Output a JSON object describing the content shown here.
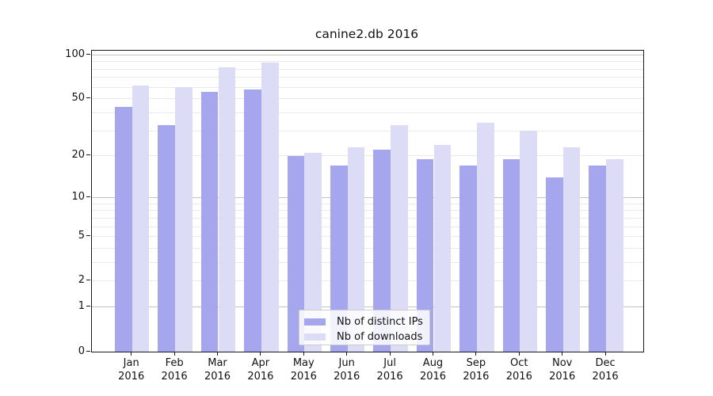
{
  "title": "canine2.db 2016",
  "chart_data": {
    "type": "bar",
    "title": "canine2.db 2016",
    "y_scale": "log1p (symlog-like, 0 shown on axis)",
    "categories": [
      "Jan 2016",
      "Feb 2016",
      "Mar 2016",
      "Apr 2016",
      "May 2016",
      "Jun 2016",
      "Jul 2016",
      "Aug 2016",
      "Sep 2016",
      "Oct 2016",
      "Nov 2016",
      "Dec 2016"
    ],
    "series": [
      {
        "name": "Nb of distinct IPs",
        "color": "#a6a6ef",
        "values": [
          44,
          33,
          56,
          58,
          20,
          17,
          22,
          19,
          17,
          19,
          14,
          17
        ]
      },
      {
        "name": "Nb of downloads",
        "color": "#dcdcf7",
        "values": [
          62,
          60,
          82,
          89,
          21,
          23,
          33,
          24,
          34,
          30,
          23,
          19
        ]
      }
    ],
    "y_ticks": [
      100,
      50,
      20,
      10,
      5,
      2,
      1,
      0
    ],
    "gridlines_minor": [
      2,
      3,
      4,
      5,
      6,
      7,
      8,
      9,
      20,
      30,
      40,
      50,
      60,
      70,
      80,
      90
    ],
    "gridlines_major": [
      1,
      10,
      100
    ],
    "ylim": [
      0,
      108
    ],
    "grid": "on",
    "legend_position": "lower center"
  },
  "colors": {
    "bar_distinct_ips": "#a6a6ef",
    "bar_downloads": "#dcdcf7",
    "grid_minor": "#e9e9e9",
    "grid_major": "#c3c3c3",
    "spine": "#1a1a1a",
    "background": "#ffffff"
  }
}
